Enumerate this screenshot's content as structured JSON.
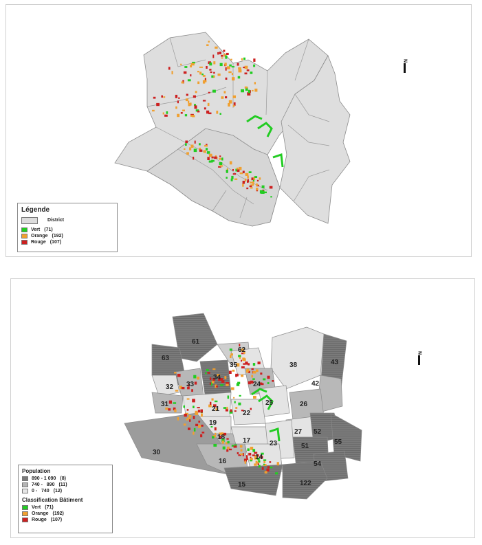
{
  "top_map": {
    "legend": {
      "title": "Légende",
      "district_label": "District",
      "items": [
        {
          "label": "Vert",
          "count": "(71)",
          "color": "#22cc22"
        },
        {
          "label": "Orange",
          "count": "(192)",
          "color": "#f0a030"
        },
        {
          "label": "Rouge",
          "count": "(107)",
          "color": "#cc2020"
        }
      ]
    },
    "north_label": "N"
  },
  "bottom_map": {
    "legend": {
      "population_title": "Population",
      "population_classes": [
        {
          "label": "890 - 1 090",
          "count": "(8)",
          "color": "#7a7a7a"
        },
        {
          "label": "740 -   890",
          "count": "(11)",
          "color": "#b4b4b4"
        },
        {
          "label": "0 -   740",
          "count": "(12)",
          "color": "#e6e6e6"
        }
      ],
      "building_title": "Classification Bâtiment",
      "items": [
        {
          "label": "Vert",
          "count": "(71)",
          "color": "#22cc22"
        },
        {
          "label": "Orange",
          "count": "(192)",
          "color": "#f0a030"
        },
        {
          "label": "Rouge",
          "count": "(107)",
          "color": "#cc2020"
        }
      ]
    },
    "north_label": "N",
    "zone_labels": [
      "61",
      "62",
      "63",
      "35",
      "38",
      "43",
      "32",
      "33",
      "34",
      "24",
      "42",
      "31",
      "21",
      "25",
      "26",
      "22",
      "27",
      "52",
      "55",
      "19",
      "18",
      "17",
      "23",
      "51",
      "30",
      "16",
      "14",
      "54",
      "15",
      "122"
    ]
  }
}
